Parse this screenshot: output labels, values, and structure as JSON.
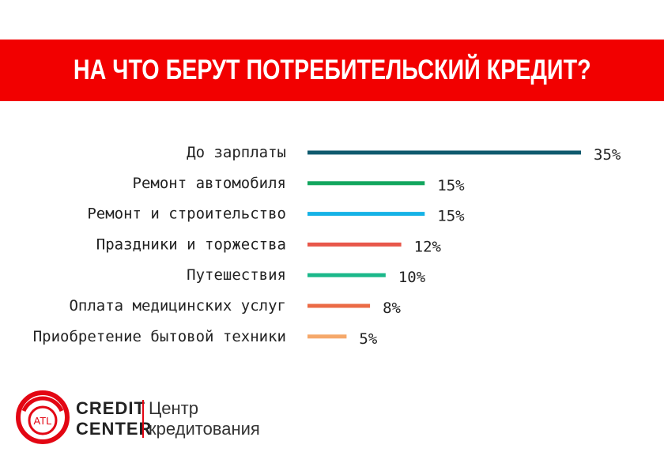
{
  "header": {
    "title": "НА ЧТО БЕРУТ ПОТРЕБИТЕЛЬСКИЙ КРЕДИТ?"
  },
  "chart_data": {
    "type": "bar",
    "orientation": "horizontal",
    "title": "НА ЧТО БЕРУТ ПОТРЕБИТЕЛЬСКИЙ КРЕДИТ?",
    "categories": [
      "До зарплаты",
      "Ремонт автомобиля",
      "Ремонт и строительство",
      "Праздники и торжества",
      "Путешествия",
      "Оплата медицинских услуг",
      "Приобретение бытовой техники"
    ],
    "values": [
      35,
      15,
      15,
      12,
      10,
      8,
      5
    ],
    "value_labels": [
      "35%",
      "15%",
      "15%",
      "12%",
      "10%",
      "8%",
      "5%"
    ],
    "colors": [
      "#0f5a6e",
      "#12a65e",
      "#15b2e6",
      "#e8574a",
      "#1bb88a",
      "#eb6b45",
      "#f5a86a"
    ],
    "unit": "%",
    "xlim": [
      0,
      35
    ],
    "grid": false,
    "legend": "none"
  },
  "logo": {
    "mark_text": "ATL",
    "brand_lines": [
      "CREDIT",
      "CENTER"
    ],
    "tagline_lines": [
      "Центр",
      "кредитования"
    ],
    "colors": {
      "brand_red": "#e30613"
    }
  }
}
